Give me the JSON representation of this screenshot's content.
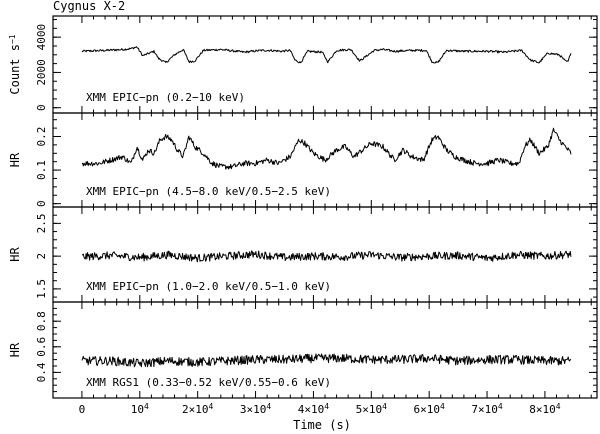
{
  "chart_data": {
    "type": "line",
    "title": "Cygnus X-2",
    "xlabel": "Time (s)",
    "xlim": [
      -5000,
      89000
    ],
    "x_ticks": [
      {
        "v": 0,
        "base": "0",
        "exp": ""
      },
      {
        "v": 10000,
        "base": "10",
        "exp": "4"
      },
      {
        "v": 20000,
        "base": "2×10",
        "exp": "4"
      },
      {
        "v": 30000,
        "base": "3×10",
        "exp": "4"
      },
      {
        "v": 40000,
        "base": "4×10",
        "exp": "4"
      },
      {
        "v": 50000,
        "base": "5×10",
        "exp": "4"
      },
      {
        "v": 60000,
        "base": "6×10",
        "exp": "4"
      },
      {
        "v": 70000,
        "base": "7×10",
        "exp": "4"
      },
      {
        "v": 80000,
        "base": "8×10",
        "exp": "4"
      }
    ],
    "panels": [
      {
        "ylabel": "Count s",
        "ylabel_exp": "−1",
        "annotation": "XMM EPIC−pn (0.2−10 keV)",
        "ylim": [
          -300,
          5200
        ],
        "yticks": [
          0,
          2000,
          4000
        ],
        "ytick_labels": [
          "0",
          "2000",
          "4000"
        ],
        "x": [
          0,
          4000,
          7000,
          8500,
          9500,
          10500,
          12500,
          13200,
          14500,
          16000,
          17500,
          18500,
          19500,
          21000,
          24000,
          28000,
          31000,
          32500,
          34500,
          36000,
          36800,
          37800,
          39000,
          41500,
          42500,
          44000,
          46500,
          48000,
          50500,
          52000,
          54000,
          57000,
          59500,
          60500,
          61500,
          63000,
          66000,
          70000,
          73000,
          74500,
          76000,
          77500,
          79000,
          80500,
          82500,
          83500,
          84000,
          84500
        ],
        "values": [
          3200,
          3250,
          3300,
          3350,
          3450,
          2950,
          3200,
          2800,
          2550,
          3000,
          3300,
          2600,
          2650,
          3250,
          3300,
          3150,
          3250,
          3250,
          3200,
          3250,
          2700,
          2550,
          3200,
          3150,
          2600,
          3250,
          3300,
          2650,
          3250,
          3300,
          3200,
          3250,
          3250,
          2600,
          2550,
          3250,
          3200,
          3200,
          3150,
          3200,
          3250,
          2700,
          2550,
          3100,
          3000,
          2650,
          2600,
          3150
        ],
        "noise": 60
      },
      {
        "ylabel": "HR",
        "annotation": "XMM EPIC−pn (4.5−8.0 keV/0.5−2.5 keV)",
        "ylim": [
          -0.01,
          0.27
        ],
        "yticks": [
          0,
          0.1,
          0.2
        ],
        "ytick_labels": [
          "0",
          "0.1",
          "0.2"
        ],
        "x": [
          0,
          3000,
          5000,
          7000,
          8500,
          9500,
          10500,
          11500,
          12500,
          13500,
          14500,
          15500,
          16500,
          17500,
          18500,
          19500,
          21000,
          22500,
          24000,
          26000,
          28000,
          30000,
          32000,
          34000,
          36000,
          37500,
          38500,
          40000,
          42000,
          44000,
          45500,
          47000,
          48500,
          50000,
          52000,
          54000,
          55500,
          57000,
          59000,
          60500,
          61500,
          63000,
          64500,
          66000,
          68000,
          70000,
          72000,
          74000,
          75500,
          76500,
          77500,
          79000,
          80500,
          81500,
          82500,
          84000,
          84500
        ],
        "values": [
          0.12,
          0.12,
          0.13,
          0.14,
          0.12,
          0.17,
          0.13,
          0.16,
          0.15,
          0.19,
          0.2,
          0.19,
          0.16,
          0.14,
          0.2,
          0.17,
          0.15,
          0.12,
          0.11,
          0.11,
          0.12,
          0.12,
          0.13,
          0.12,
          0.14,
          0.19,
          0.18,
          0.15,
          0.13,
          0.16,
          0.17,
          0.14,
          0.16,
          0.18,
          0.17,
          0.13,
          0.16,
          0.14,
          0.13,
          0.19,
          0.2,
          0.16,
          0.14,
          0.13,
          0.12,
          0.12,
          0.13,
          0.12,
          0.12,
          0.17,
          0.19,
          0.15,
          0.17,
          0.22,
          0.19,
          0.16,
          0.15
        ],
        "noise": 0.008
      },
      {
        "ylabel": "HR",
        "annotation": "XMM EPIC−pn (1.0−2.0 keV/0.5−1.0 keV)",
        "ylim": [
          1.3,
          2.75
        ],
        "yticks": [
          1.5,
          2,
          2.5
        ],
        "ytick_labels": [
          "1.5",
          "2",
          "2.5"
        ],
        "x": [
          0,
          5000,
          10000,
          15000,
          20000,
          25000,
          30000,
          35000,
          40000,
          45000,
          50000,
          55000,
          60000,
          65000,
          70000,
          75000,
          80000,
          84500
        ],
        "values": [
          1.99,
          2.01,
          1.98,
          2.02,
          1.97,
          2.0,
          2.03,
          1.98,
          2.0,
          1.99,
          2.02,
          1.98,
          2.0,
          2.01,
          1.97,
          2.02,
          2.0,
          2.03
        ],
        "noise": 0.06
      },
      {
        "ylabel": "HR",
        "annotation": "XMM RGS1 (0.33−0.52 keV/0.55−0.6 keV)",
        "ylim": [
          0.2,
          0.95
        ],
        "yticks": [
          0.4,
          0.6,
          0.8
        ],
        "ytick_labels": [
          "0.4",
          "0.6",
          "0.8"
        ],
        "x": [
          0,
          5000,
          10000,
          15000,
          20000,
          25000,
          30000,
          35000,
          40000,
          45000,
          50000,
          55000,
          60000,
          65000,
          70000,
          75000,
          80000,
          84500
        ],
        "values": [
          0.49,
          0.49,
          0.47,
          0.49,
          0.48,
          0.49,
          0.5,
          0.5,
          0.51,
          0.51,
          0.5,
          0.5,
          0.51,
          0.49,
          0.5,
          0.5,
          0.49,
          0.49
        ],
        "noise": 0.035
      }
    ]
  }
}
